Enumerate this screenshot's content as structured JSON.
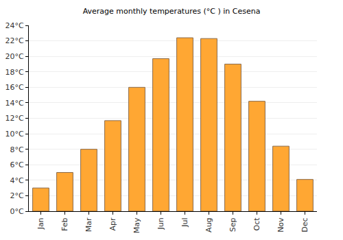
{
  "chart_data": {
    "type": "bar",
    "title": "Average monthly temperatures (°C ) in Cesena",
    "categories": [
      "Jan",
      "Feb",
      "Mar",
      "Apr",
      "May",
      "Jun",
      "Jul",
      "Aug",
      "Sep",
      "Oct",
      "Nov",
      "Dec"
    ],
    "values": [
      3.0,
      5.0,
      8.0,
      11.7,
      16.0,
      19.7,
      22.4,
      22.3,
      19.0,
      14.2,
      8.4,
      4.1
    ],
    "color": "#ffa733",
    "ylim": [
      0,
      24
    ],
    "yticks": [
      {
        "value": 0,
        "label": "0°C"
      },
      {
        "value": 2,
        "label": "2°C"
      },
      {
        "value": 4,
        "label": "4°C"
      },
      {
        "value": 6,
        "label": "6°C"
      },
      {
        "value": 8,
        "label": "8°C"
      },
      {
        "value": 10,
        "label": "10°C"
      },
      {
        "value": 12,
        "label": "12°C"
      },
      {
        "value": 14,
        "label": "14°C"
      },
      {
        "value": 16,
        "label": "16°C"
      },
      {
        "value": 18,
        "label": "18°C"
      },
      {
        "value": 20,
        "label": "20°C"
      },
      {
        "value": 22,
        "label": "22°C"
      },
      {
        "value": 24,
        "label": "24°C"
      }
    ],
    "grid": true
  }
}
